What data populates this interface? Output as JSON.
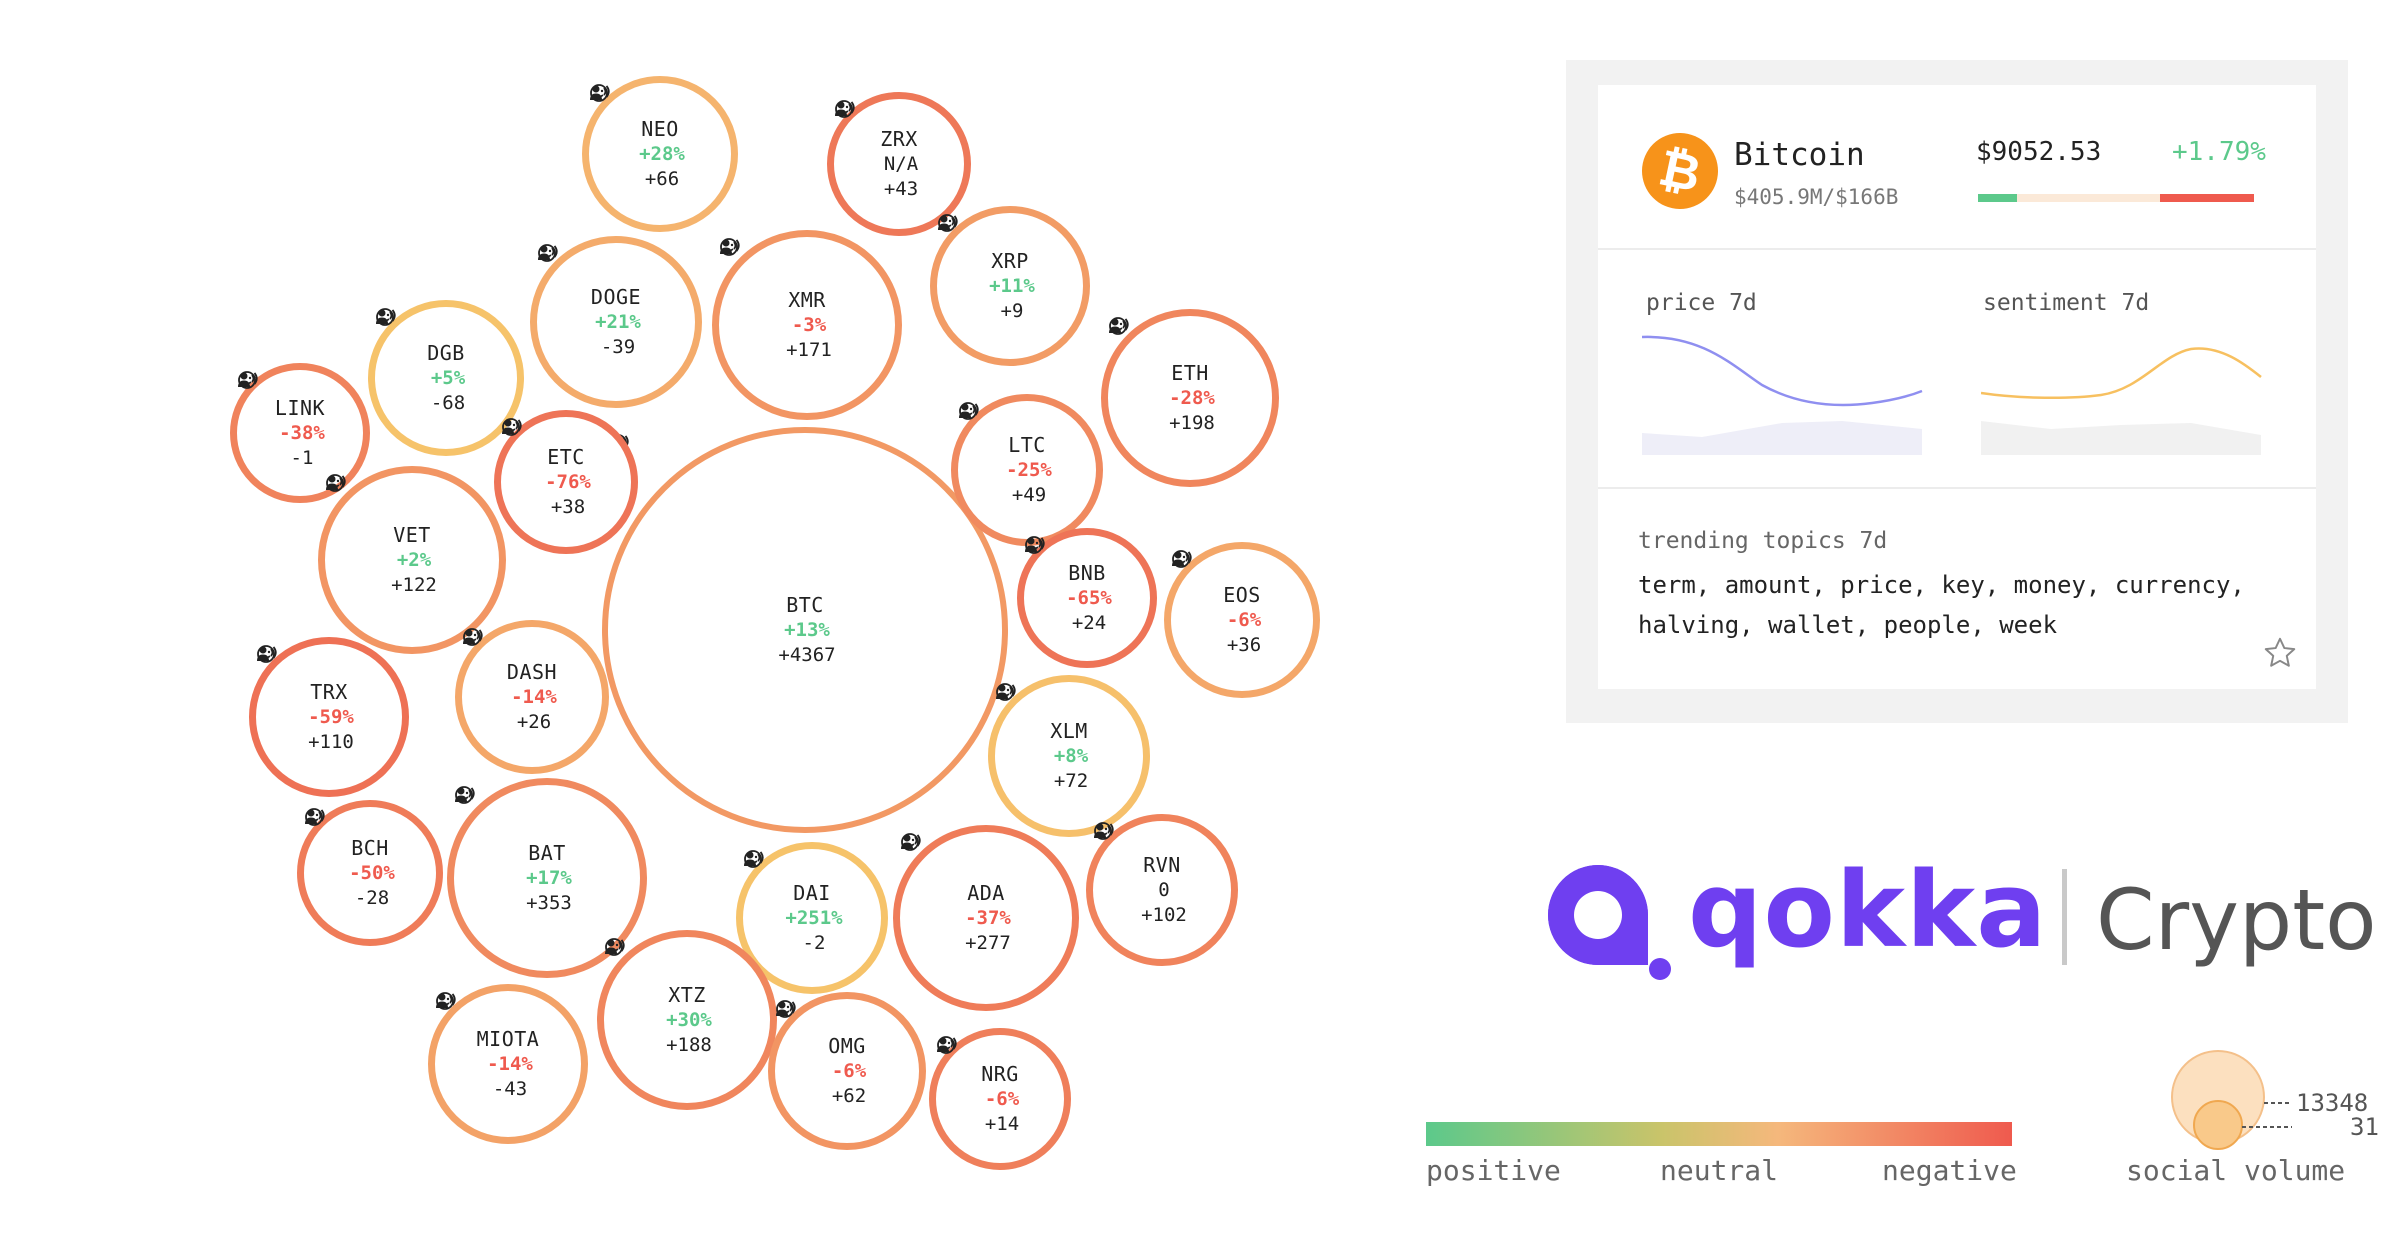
{
  "bubbles": [
    {
      "symbol": "BTC",
      "sentiment": "+13%",
      "sentiment_sign": "pos",
      "volume": "+4367",
      "score": 0.7
    },
    {
      "symbol": "NEO",
      "sentiment": "+28%",
      "sentiment_sign": "pos",
      "volume": "+66",
      "score": 0.55
    },
    {
      "symbol": "ZRX",
      "sentiment": "N/A",
      "sentiment_sign": "na",
      "volume": "+43",
      "score": 0.88
    },
    {
      "symbol": "DOGE",
      "sentiment": "+21%",
      "sentiment_sign": "pos",
      "volume": "-39",
      "score": 0.6
    },
    {
      "symbol": "XMR",
      "sentiment": "-3%",
      "sentiment_sign": "neg",
      "volume": "+171",
      "score": 0.72
    },
    {
      "symbol": "XRP",
      "sentiment": "+11%",
      "sentiment_sign": "pos",
      "volume": "+9",
      "score": 0.68
    },
    {
      "symbol": "DGB",
      "sentiment": "+5%",
      "sentiment_sign": "pos",
      "volume": "-68",
      "score": 0.35
    },
    {
      "symbol": "LINK",
      "sentiment": "-38%",
      "sentiment_sign": "neg",
      "volume": "-1",
      "score": 0.82
    },
    {
      "symbol": "ETH",
      "sentiment": "-28%",
      "sentiment_sign": "neg",
      "volume": "+198",
      "score": 0.8
    },
    {
      "symbol": "ETC",
      "sentiment": "-76%",
      "sentiment_sign": "neg",
      "volume": "+38",
      "score": 0.9
    },
    {
      "symbol": "LTC",
      "sentiment": "-25%",
      "sentiment_sign": "neg",
      "volume": "+49",
      "score": 0.78
    },
    {
      "symbol": "VET",
      "sentiment": "+2%",
      "sentiment_sign": "pos",
      "volume": "+122",
      "score": 0.72
    },
    {
      "symbol": "BNB",
      "sentiment": "-65%",
      "sentiment_sign": "neg",
      "volume": "+24",
      "score": 0.9
    },
    {
      "symbol": "EOS",
      "sentiment": "-6%",
      "sentiment_sign": "neg",
      "volume": "+36",
      "score": 0.62
    },
    {
      "symbol": "DASH",
      "sentiment": "-14%",
      "sentiment_sign": "neg",
      "volume": "+26",
      "score": 0.62
    },
    {
      "symbol": "TRX",
      "sentiment": "-59%",
      "sentiment_sign": "neg",
      "volume": "+110",
      "score": 0.92
    },
    {
      "symbol": "XLM",
      "sentiment": "+8%",
      "sentiment_sign": "pos",
      "volume": "+72",
      "score": 0.38
    },
    {
      "symbol": "BCH",
      "sentiment": "-50%",
      "sentiment_sign": "neg",
      "volume": "-28",
      "score": 0.86
    },
    {
      "symbol": "BAT",
      "sentiment": "+17%",
      "sentiment_sign": "pos",
      "volume": "+353",
      "score": 0.78
    },
    {
      "symbol": "DAI",
      "sentiment": "+251%",
      "sentiment_sign": "pos",
      "volume": "-2",
      "score": 0.35
    },
    {
      "symbol": "ADA",
      "sentiment": "-37%",
      "sentiment_sign": "neg",
      "volume": "+277",
      "score": 0.86
    },
    {
      "symbol": "RVN",
      "sentiment": "0",
      "sentiment_sign": "na",
      "volume": "+102",
      "score": 0.82
    },
    {
      "symbol": "XTZ",
      "sentiment": "+30%",
      "sentiment_sign": "pos",
      "volume": "+188",
      "score": 0.8
    },
    {
      "symbol": "MIOTA",
      "sentiment": "-14%",
      "sentiment_sign": "neg",
      "volume": "-43",
      "score": 0.65
    },
    {
      "symbol": "OMG",
      "sentiment": "-6%",
      "sentiment_sign": "neg",
      "volume": "+62",
      "score": 0.72
    },
    {
      "symbol": "NRG",
      "sentiment": "-6%",
      "sentiment_sign": "neg",
      "volume": "+14",
      "score": 0.84
    }
  ],
  "card": {
    "coin_name": "Bitcoin",
    "coin_volume": "$405.9M/$166B",
    "price": "$9052.53",
    "change": "+1.79%",
    "sentiment_split": {
      "positive": 0.14,
      "neutral": 0.52,
      "negative": 0.34
    },
    "price_label": "price 7d",
    "sentiment_label": "sentiment 7d",
    "trending_label": "trending topics 7d",
    "trending_topics": "term, amount, price, key, money, currency, halving, wallet, people, week"
  },
  "brand": {
    "name": "qokka",
    "product": "Crypto"
  },
  "legend": {
    "positive": "positive",
    "neutral": "neutral",
    "negative": "negative",
    "volume_label": "social volume",
    "volume_max": "13348",
    "volume_min": "31"
  },
  "colors": {
    "positive": "#5cc98b",
    "neutral": "#f7d060",
    "negative": "#ef5a4e",
    "brand": "#6f3ff0",
    "bitcoin": "#f7931a"
  }
}
